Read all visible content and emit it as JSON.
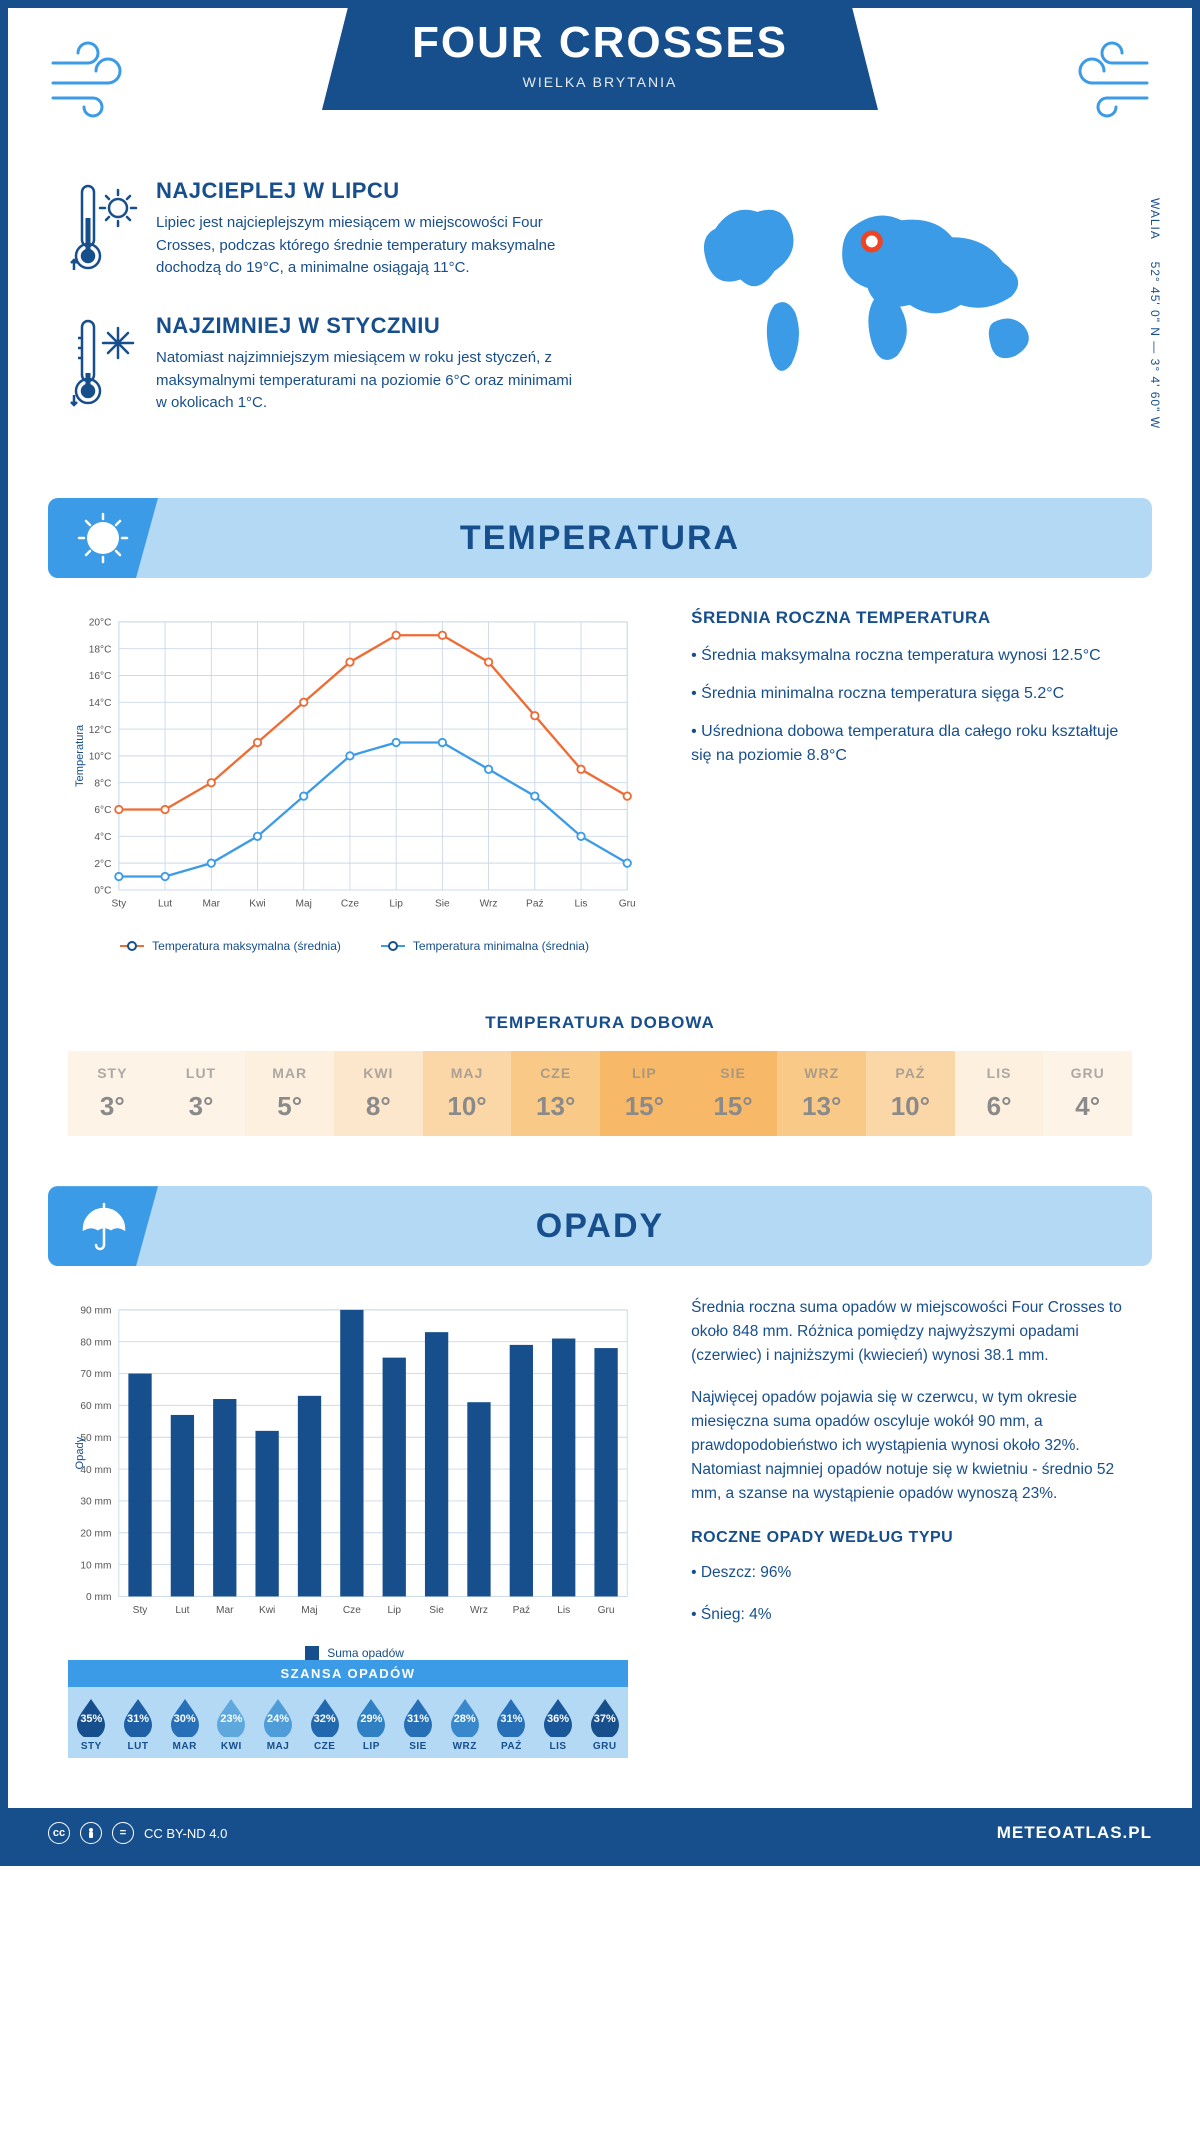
{
  "header": {
    "title": "FOUR CROSSES",
    "subtitle": "WIELKA BRYTANIA"
  },
  "coords": {
    "region": "WALIA",
    "lat": "52° 45' 0\" N",
    "lon": "3° 4' 60\" W"
  },
  "intro": {
    "warm": {
      "title": "NAJCIEPLEJ W LIPCU",
      "text": "Lipiec jest najcieplejszym miesiącem w miejscowości Four Crosses, podczas którego średnie temperatury maksymalne dochodzą do 19°C, a minimalne osiągają 11°C."
    },
    "cold": {
      "title": "NAJZIMNIEJ W STYCZNIU",
      "text": "Natomiast najzimniejszym miesiącem w roku jest styczeń, z maksymalnymi temperaturami na poziomie 6°C oraz minimami w okolicach 1°C."
    }
  },
  "months": [
    "Sty",
    "Lut",
    "Mar",
    "Kwi",
    "Maj",
    "Cze",
    "Lip",
    "Sie",
    "Wrz",
    "Paź",
    "Lis",
    "Gru"
  ],
  "months_upper": [
    "STY",
    "LUT",
    "MAR",
    "KWI",
    "MAJ",
    "CZE",
    "LIP",
    "SIE",
    "WRZ",
    "PAŹ",
    "LIS",
    "GRU"
  ],
  "temperature": {
    "section_title": "TEMPERATURA",
    "axis_label": "Temperatura",
    "ylim": [
      0,
      20
    ],
    "ytick_step": 2,
    "y_suffix": "°C",
    "max_series": {
      "label": "Temperatura maksymalna (średnia)",
      "color": "#ef6b34",
      "values": [
        6,
        6,
        8,
        11,
        14,
        17,
        19,
        19,
        17,
        13,
        9,
        7
      ]
    },
    "min_series": {
      "label": "Temperatura minimalna (średnia)",
      "color": "#3b9be6",
      "values": [
        1,
        1,
        2,
        4,
        7,
        10,
        11,
        11,
        9,
        7,
        4,
        2
      ]
    },
    "grid_color": "#cbd9e8",
    "stats_title": "ŚREDNIA ROCZNA TEMPERATURA",
    "stats": [
      "• Średnia maksymalna roczna temperatura wynosi 12.5°C",
      "• Średnia minimalna roczna temperatura sięga 5.2°C",
      "• Uśredniona dobowa temperatura dla całego roku kształtuje się na poziomie 8.8°C"
    ],
    "daily_title": "TEMPERATURA DOBOWA",
    "daily_values": [
      3,
      3,
      5,
      8,
      10,
      13,
      15,
      15,
      13,
      10,
      6,
      4
    ],
    "daily_colors": [
      "#fdf3e7",
      "#fdf3e7",
      "#fdf0df",
      "#fde7cc",
      "#fbd7a8",
      "#f9c988",
      "#f7b867",
      "#f7b867",
      "#f9c988",
      "#fbd7a8",
      "#fdf0df",
      "#fdf3e7"
    ],
    "daily_text_color": "#8a8a8a"
  },
  "precip": {
    "section_title": "OPADY",
    "axis_label": "Opady",
    "ylim": [
      0,
      90
    ],
    "ytick_step": 10,
    "y_suffix": " mm",
    "values": [
      70,
      57,
      62,
      52,
      63,
      90,
      75,
      83,
      61,
      79,
      81,
      78
    ],
    "bar_color": "#174e8c",
    "grid_color": "#cbd9e8",
    "legend_label": "Suma opadów",
    "para1": "Średnia roczna suma opadów w miejscowości Four Crosses to około 848 mm. Różnica pomiędzy najwyższymi opadami (czerwiec) i najniższymi (kwiecień) wynosi 38.1 mm.",
    "para2": "Najwięcej opadów pojawia się w czerwcu, w tym okresie miesięczna suma opadów oscyluje wokół 90 mm, a prawdopodobieństwo ich wystąpienia wynosi około 32%. Natomiast najmniej opadów notuje się w kwietniu - średnio 52 mm, a szanse na wystąpienie opadów wynoszą 23%.",
    "chance_title": "SZANSA OPADÓW",
    "chance_values": [
      35,
      31,
      30,
      23,
      24,
      32,
      29,
      31,
      28,
      31,
      36,
      37
    ],
    "chance_colors": [
      "#174e8c",
      "#1f5fa5",
      "#2770b8",
      "#5fa8de",
      "#4f9dd8",
      "#2268ae",
      "#3080c4",
      "#2770b8",
      "#3888cb",
      "#2770b8",
      "#1a569a",
      "#174e8c"
    ],
    "type_title": "ROCZNE OPADY WEDŁUG TYPU",
    "types": [
      "• Deszcz: 96%",
      "• Śnieg: 4%"
    ]
  },
  "footer": {
    "license": "CC BY-ND 4.0",
    "brand": "METEOATLAS.PL"
  }
}
